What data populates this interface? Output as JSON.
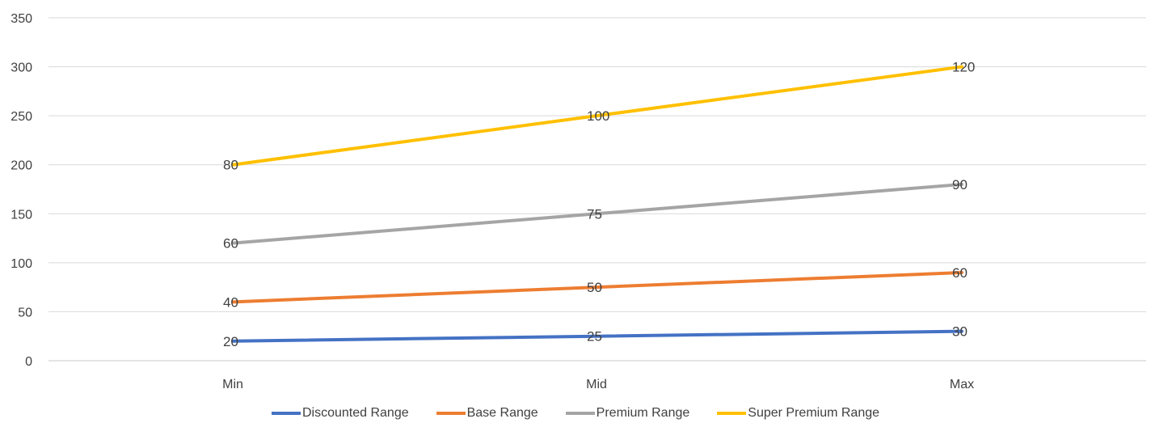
{
  "chart_data": {
    "type": "line",
    "categories": [
      "Min",
      "Mid",
      "Max"
    ],
    "ylim": [
      0,
      350
    ],
    "yticks": [
      0,
      50,
      100,
      150,
      200,
      250,
      300,
      350
    ],
    "grid": true,
    "legend_position": "bottom",
    "series": [
      {
        "name": "Discounted Range",
        "color": "#4472C4",
        "values": [
          20,
          25,
          30
        ],
        "labels": [
          "20",
          "25",
          "30"
        ]
      },
      {
        "name": "Base Range",
        "color": "#ED7D31",
        "values": [
          60,
          75,
          90
        ],
        "labels": [
          "40",
          "50",
          "60"
        ]
      },
      {
        "name": "Premium Range",
        "color": "#A5A5A5",
        "values": [
          120,
          150,
          180
        ],
        "labels": [
          "60",
          "75",
          "90"
        ]
      },
      {
        "name": "Super Premium Range",
        "color": "#FFC000",
        "values": [
          200,
          250,
          300
        ],
        "labels": [
          "80",
          "100",
          "120"
        ]
      }
    ]
  }
}
